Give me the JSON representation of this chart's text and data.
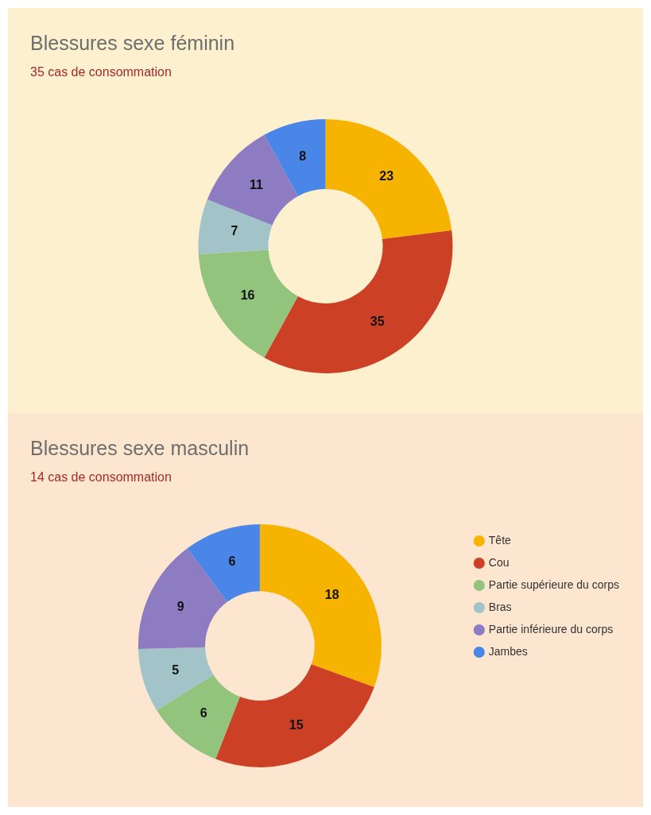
{
  "chart_data": [
    {
      "type": "donut",
      "title": "Blessures sexe féminin",
      "subtitle": "35 cas de consommation",
      "categories": [
        null,
        null,
        null,
        null,
        null,
        null
      ],
      "values": [
        23,
        35,
        16,
        7,
        11,
        8
      ],
      "colors": [
        "#f6b400",
        "#cc4125",
        "#93c47d",
        "#a2c4c9",
        "#8e7cc3",
        "#4a86e8"
      ],
      "data_labels": true,
      "legend": false
    },
    {
      "type": "donut",
      "title": "Blessures sexe masculin",
      "subtitle": "14 cas de consommation",
      "categories": [
        "Tête",
        "Cou",
        "Partie supérieure du corps",
        "Bras",
        "Partie inférieure du corps",
        "Jambes"
      ],
      "values": [
        18,
        15,
        6,
        5,
        9,
        6
      ],
      "colors": [
        "#f6b400",
        "#cc4125",
        "#93c47d",
        "#a2c4c9",
        "#8e7cc3",
        "#4a86e8"
      ],
      "data_labels": true,
      "legend": "right"
    }
  ]
}
